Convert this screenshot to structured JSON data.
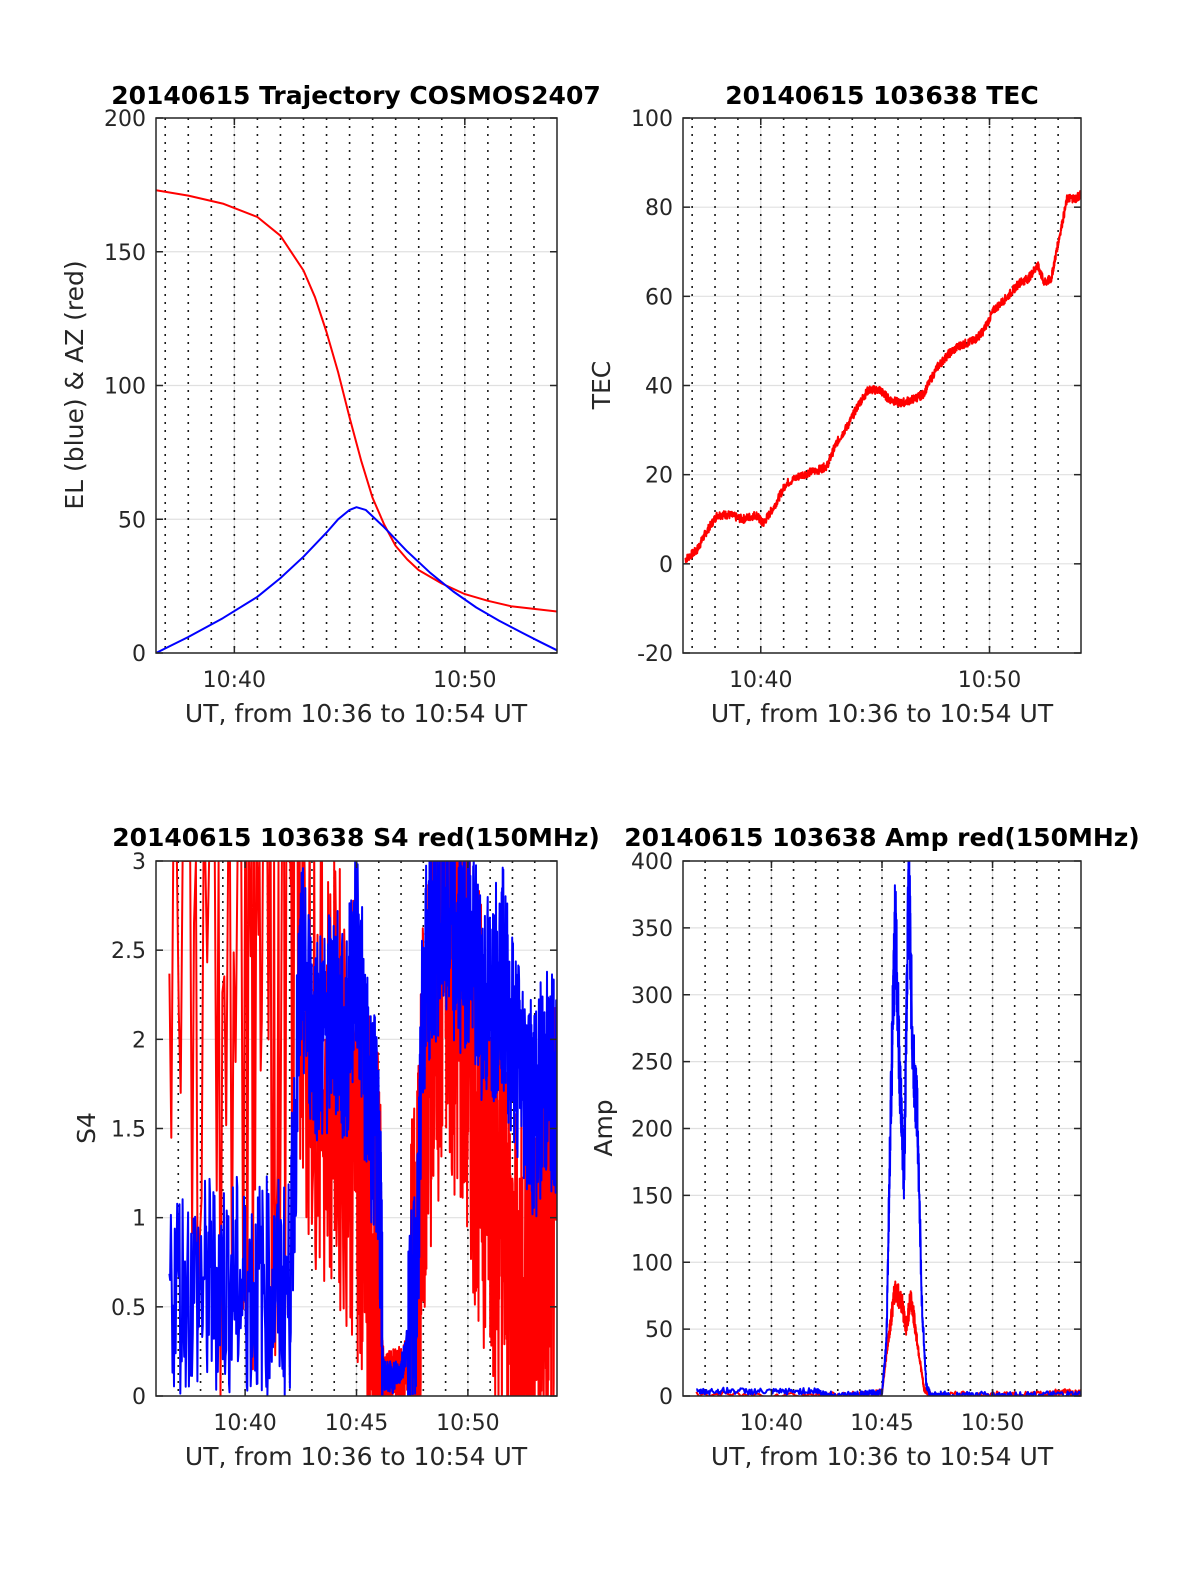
{
  "figure": {
    "colors": {
      "blue": "#0000ff",
      "red": "#ff0000",
      "axis": "#262626",
      "grid": "#e0e0e0",
      "dotted": "#1a1a1a"
    }
  },
  "chart_data": [
    {
      "type": "line",
      "title": "20140615 Trajectory COSMOS2407",
      "xlabel": "UT, from 10:36 to 10:54 UT",
      "ylabel": "EL (blue) & AZ (red)",
      "xlim": [
        36.6,
        54.0
      ],
      "ylim": [
        0,
        200
      ],
      "xticks": [
        {
          "value": 40,
          "label": "10:40"
        },
        {
          "value": 50,
          "label": "10:50"
        }
      ],
      "yticks": [
        0,
        50,
        100,
        150,
        200
      ],
      "series": [
        {
          "name": "AZ",
          "color": "#ff0000",
          "x": [
            36.6,
            38,
            39.5,
            41,
            42,
            43,
            43.5,
            44,
            44.5,
            45,
            45.5,
            46,
            46.5,
            47,
            47.5,
            48,
            49,
            50,
            51,
            52,
            53,
            54
          ],
          "y": [
            173,
            171,
            168,
            163,
            156,
            143,
            133,
            120,
            105,
            88,
            72,
            58,
            48,
            40,
            35,
            31,
            26,
            22,
            19.5,
            17.5,
            16.5,
            15.5
          ]
        },
        {
          "name": "EL",
          "color": "#0000ff",
          "x": [
            36.6,
            38,
            39.5,
            41,
            42,
            43,
            44,
            44.5,
            45,
            45.3,
            45.7,
            46.5,
            47.5,
            48.5,
            49.5,
            50.5,
            51.5,
            52.5,
            53.3,
            54
          ],
          "y": [
            0,
            6,
            13,
            21,
            28,
            36,
            45,
            50,
            53.5,
            54.5,
            53.5,
            47,
            38,
            30,
            23,
            17,
            12,
            7.5,
            4,
            1
          ]
        }
      ]
    },
    {
      "type": "line",
      "title": "20140615 103638 TEC",
      "xlabel": "UT, from 10:36 to 10:54 UT",
      "ylabel": "TEC",
      "xlim": [
        36.6,
        54.0
      ],
      "ylim": [
        -20,
        100
      ],
      "xticks": [
        {
          "value": 40,
          "label": "10:40"
        },
        {
          "value": 50,
          "label": "10:50"
        }
      ],
      "yticks": [
        -20,
        0,
        20,
        40,
        60,
        80,
        100
      ],
      "series": [
        {
          "name": "TEC",
          "color": "#ff0000",
          "x": [
            36.7,
            37.2,
            37.6,
            38.1,
            38.6,
            39.2,
            39.8,
            40.1,
            40.6,
            41.1,
            41.8,
            42.5,
            42.9,
            43.3,
            43.8,
            44.3,
            44.7,
            45.2,
            45.6,
            46.1,
            46.7,
            47.1,
            47.7,
            48.2,
            48.7,
            49.3,
            49.7,
            50.2,
            50.8,
            51.3,
            51.7,
            52.1,
            52.4,
            52.7,
            53.0,
            53.4,
            53.8,
            54.0
          ],
          "y": [
            1,
            3,
            7,
            11,
            11,
            10,
            11,
            9,
            13,
            18,
            20,
            21,
            22,
            27,
            31,
            36,
            39,
            39,
            37,
            36,
            37,
            38,
            44,
            47,
            49,
            50,
            52,
            57,
            60,
            63,
            64,
            67,
            63,
            64,
            72,
            82,
            82,
            83
          ]
        }
      ]
    },
    {
      "type": "line",
      "title": "20140615 103638 S4 red(150MHz)",
      "xlabel": "UT, from 10:36 to 10:54 UT",
      "ylabel": "S4",
      "xlim": [
        36.0,
        54.0
      ],
      "ylim": [
        0,
        3
      ],
      "xticks": [
        {
          "value": 40,
          "label": "10:40"
        },
        {
          "value": 45,
          "label": "10:45"
        },
        {
          "value": 50,
          "label": "10:50"
        }
      ],
      "yticks": [
        0,
        0.5,
        1,
        1.5,
        2,
        2.5,
        3
      ],
      "series": [
        {
          "name": "red",
          "color": "#ff0000",
          "x": [
            36.6,
            40.0,
            42.0,
            43.0,
            44.0,
            45.0,
            45.3,
            45.6,
            46.0,
            46.2,
            46.6,
            47.0,
            47.3,
            47.7,
            48.0,
            48.5,
            49.0,
            49.5,
            50.0,
            50.5,
            51.0,
            51.5,
            52.0,
            52.5,
            53.0,
            53.5,
            54.0
          ],
          "y": [
            3.0,
            3.0,
            3.0,
            2.0,
            1.8,
            1.5,
            1.2,
            0.9,
            0.7,
            0.1,
            0.08,
            0.1,
            0.2,
            0.5,
            1.5,
            2.2,
            2.5,
            2.3,
            2.0,
            1.6,
            1.4,
            1.0,
            0.6,
            0.5,
            0.6,
            0.8,
            1.0
          ]
        },
        {
          "name": "blue",
          "color": "#0000ff",
          "x": [
            36.6,
            38.0,
            39.0,
            40.0,
            41.0,
            42.0,
            42.5,
            43.0,
            43.5,
            44.0,
            44.5,
            45.0,
            45.5,
            46.0,
            46.2,
            46.6,
            47.0,
            47.3,
            47.7,
            48.0,
            48.5,
            49.0,
            49.5,
            50.0,
            50.5,
            51.0,
            51.5,
            52.0,
            52.5,
            53.0,
            53.5,
            54.0
          ],
          "y": [
            0.65,
            0.6,
            0.65,
            0.6,
            0.62,
            0.6,
            2.4,
            2.1,
            2.0,
            2.2,
            1.9,
            2.6,
            1.7,
            1.4,
            0.12,
            0.1,
            0.15,
            0.3,
            0.6,
            2.3,
            2.6,
            2.7,
            2.5,
            2.6,
            2.3,
            2.2,
            2.4,
            2.0,
            1.8,
            1.6,
            1.8,
            1.7
          ]
        }
      ]
    },
    {
      "type": "line",
      "title": "20140615 103638 Amp red(150MHz)",
      "xlabel": "UT, from 10:36 to 10:54 UT",
      "ylabel": "Amp",
      "xlim": [
        36.0,
        54.0
      ],
      "ylim": [
        0,
        400
      ],
      "xticks": [
        {
          "value": 40,
          "label": "10:40"
        },
        {
          "value": 45,
          "label": "10:45"
        },
        {
          "value": 50,
          "label": "10:50"
        }
      ],
      "yticks": [
        0,
        50,
        100,
        150,
        200,
        250,
        300,
        350,
        400
      ],
      "series": [
        {
          "name": "red",
          "color": "#ff0000",
          "x": [
            36.6,
            42.0,
            44.5,
            45.0,
            45.3,
            45.6,
            45.9,
            46.1,
            46.3,
            46.6,
            46.9,
            47.2,
            50.0,
            52.0,
            53.0,
            54.0
          ],
          "y": [
            1,
            1,
            1,
            3,
            45,
            80,
            70,
            50,
            75,
            40,
            5,
            1,
            1,
            1,
            3,
            2
          ]
        },
        {
          "name": "blue",
          "color": "#0000ff",
          "x": [
            36.6,
            38.0,
            40.0,
            42.0,
            42.5,
            44.0,
            45.0,
            45.2,
            45.4,
            45.6,
            45.8,
            46.0,
            46.2,
            46.4,
            46.6,
            46.8,
            47.0,
            47.2,
            48.0,
            50.0,
            52.0,
            54.0
          ],
          "y": [
            3,
            4,
            3,
            4,
            1,
            1,
            3,
            40,
            220,
            355,
            240,
            160,
            390,
            250,
            210,
            70,
            8,
            1,
            1,
            1,
            1,
            1
          ]
        }
      ]
    }
  ]
}
